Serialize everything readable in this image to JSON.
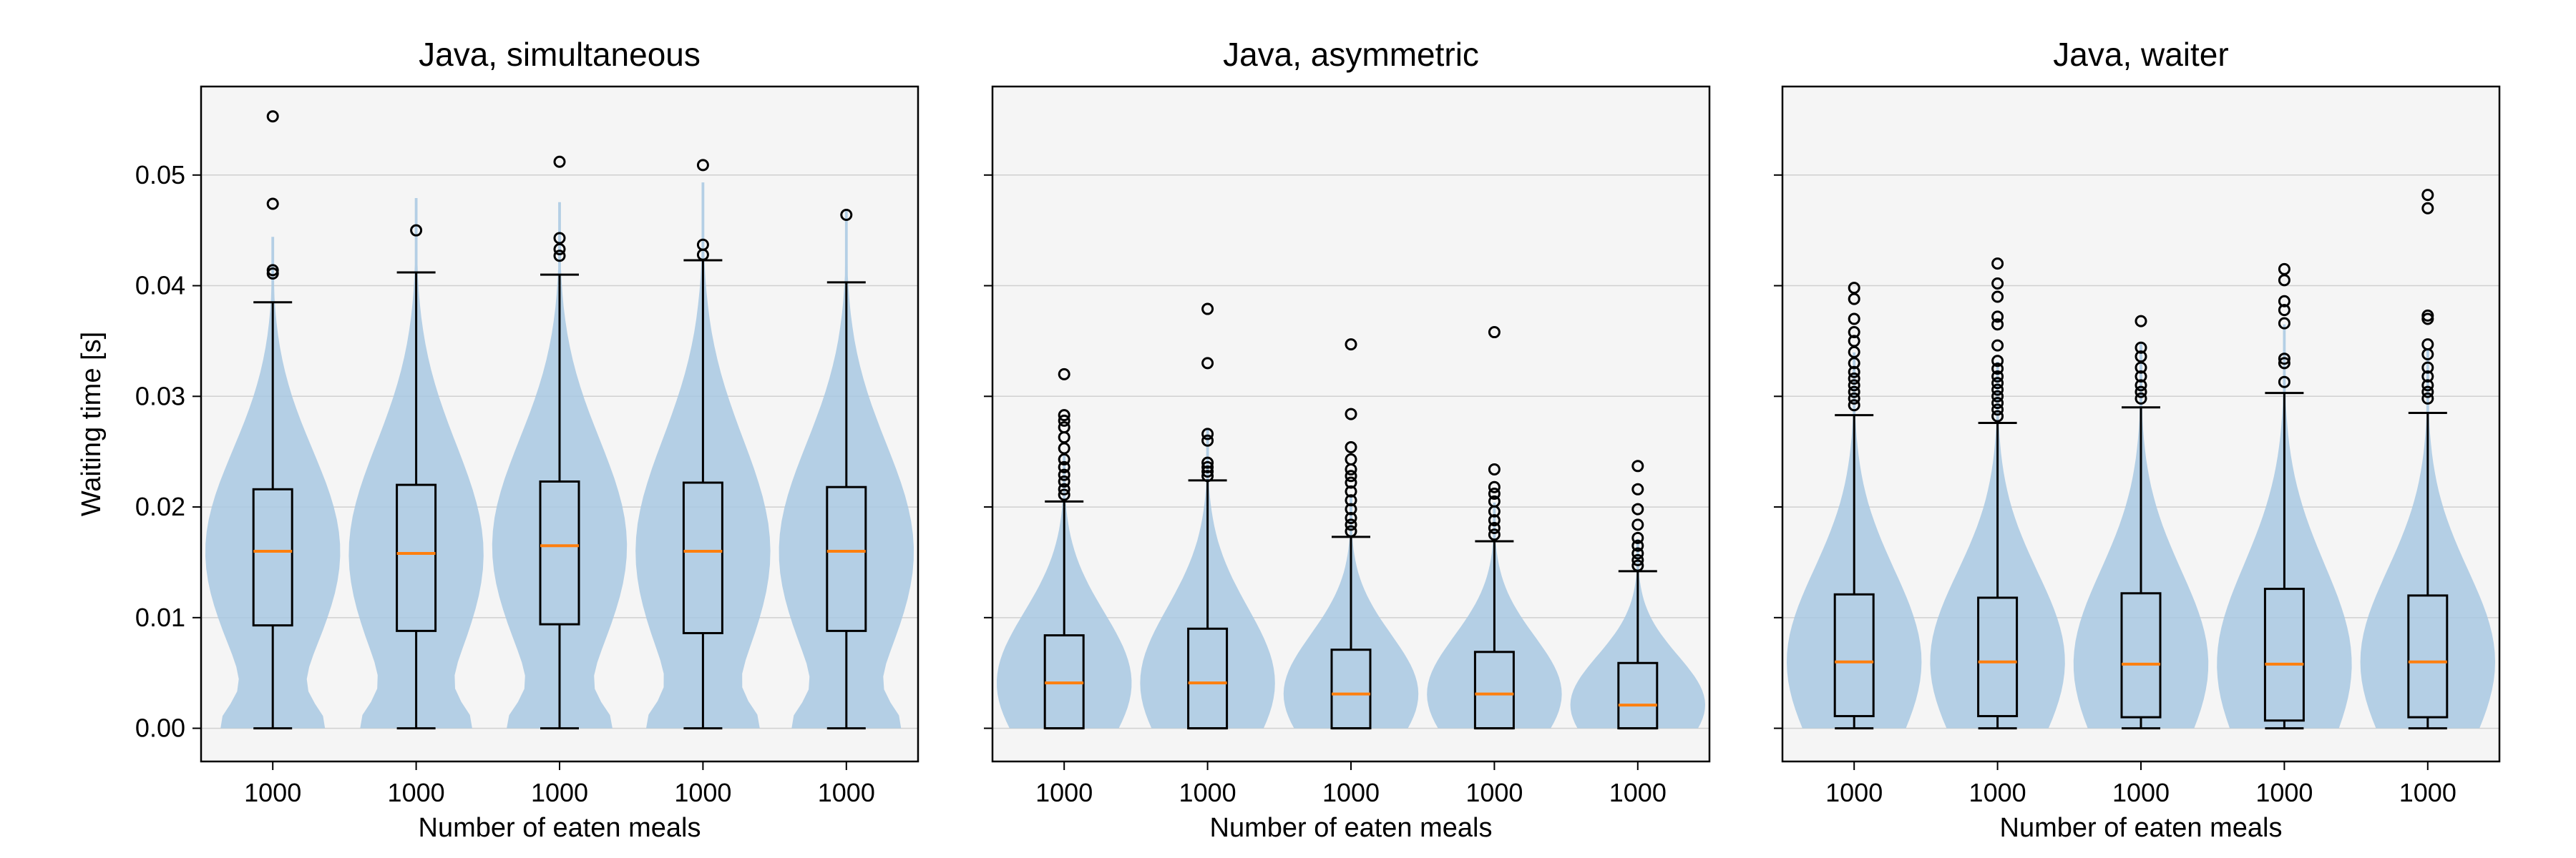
{
  "chart_data": [
    {
      "type": "violin",
      "title": "Java, simultaneous",
      "xlabel": "Number of eaten meals",
      "ylabel": "Waiting time [s]",
      "categories": [
        "1000",
        "1000",
        "1000",
        "1000",
        "1000"
      ],
      "ylim": [
        -0.003,
        0.058
      ],
      "yticks": [
        "0.00",
        "0.01",
        "0.02",
        "0.03",
        "0.04",
        "0.05"
      ],
      "grid": true,
      "colors": {
        "violin": "#a8c8e2",
        "median": "#ff7f0e",
        "background": "#f5f5f5",
        "grid": "#d0d0d0"
      },
      "boxes": [
        {
          "q1": 0.0093,
          "median": 0.016,
          "q3": 0.0216,
          "whisker_low": 0.0,
          "whisker_high": 0.0385
        },
        {
          "q1": 0.0088,
          "median": 0.0158,
          "q3": 0.022,
          "whisker_low": 0.0,
          "whisker_high": 0.0412
        },
        {
          "q1": 0.0094,
          "median": 0.0165,
          "q3": 0.0223,
          "whisker_low": 0.0,
          "whisker_high": 0.041
        },
        {
          "q1": 0.0086,
          "median": 0.016,
          "q3": 0.0222,
          "whisker_low": 0.0,
          "whisker_high": 0.0423
        },
        {
          "q1": 0.0088,
          "median": 0.016,
          "q3": 0.0218,
          "whisker_low": 0.0,
          "whisker_high": 0.0403
        }
      ],
      "outliers": [
        [
          0.0553,
          0.0474,
          0.0414,
          0.0411
        ],
        [
          0.045
        ],
        [
          0.0512,
          0.0443,
          0.0433,
          0.0427
        ],
        [
          0.0509,
          0.0437,
          0.0428
        ],
        [
          0.0464
        ]
      ]
    },
    {
      "type": "violin",
      "title": "Java, asymmetric",
      "xlabel": "Number of eaten meals",
      "ylabel": "",
      "categories": [
        "1000",
        "1000",
        "1000",
        "1000",
        "1000"
      ],
      "ylim": [
        -0.003,
        0.058
      ],
      "yticks": [],
      "grid": true,
      "boxes": [
        {
          "q1": 0.0,
          "median": 0.0041,
          "q3": 0.0084,
          "whisker_low": 0.0,
          "whisker_high": 0.0205
        },
        {
          "q1": 0.0,
          "median": 0.0041,
          "q3": 0.009,
          "whisker_low": 0.0,
          "whisker_high": 0.0224
        },
        {
          "q1": 0.0,
          "median": 0.0031,
          "q3": 0.0071,
          "whisker_low": 0.0,
          "whisker_high": 0.0173
        },
        {
          "q1": 0.0,
          "median": 0.0031,
          "q3": 0.0069,
          "whisker_low": 0.0,
          "whisker_high": 0.0169
        },
        {
          "q1": 0.0,
          "median": 0.0021,
          "q3": 0.0059,
          "whisker_low": 0.0,
          "whisker_high": 0.0142
        }
      ],
      "outliers": [
        [
          0.032,
          0.0283,
          0.0278,
          0.0272,
          0.0263,
          0.0253,
          0.0243,
          0.0236,
          0.0229,
          0.0223,
          0.0216,
          0.0211
        ],
        [
          0.0379,
          0.033,
          0.0266,
          0.026,
          0.024,
          0.0236,
          0.0232,
          0.0228
        ],
        [
          0.0347,
          0.0284,
          0.0254,
          0.0243,
          0.0234,
          0.0228,
          0.0222,
          0.0214,
          0.0206,
          0.0198,
          0.019,
          0.0184,
          0.0178
        ],
        [
          0.0358,
          0.0234,
          0.0218,
          0.0212,
          0.0205,
          0.0196,
          0.0188,
          0.0181,
          0.0175
        ],
        [
          0.0237,
          0.0216,
          0.0198,
          0.0184,
          0.0172,
          0.0165,
          0.0158,
          0.0152,
          0.0147
        ]
      ]
    },
    {
      "type": "violin",
      "title": "Java, waiter",
      "xlabel": "Number of eaten meals",
      "ylabel": "",
      "categories": [
        "1000",
        "1000",
        "1000",
        "1000",
        "1000"
      ],
      "ylim": [
        -0.003,
        0.058
      ],
      "yticks": [],
      "grid": true,
      "boxes": [
        {
          "q1": 0.0011,
          "median": 0.006,
          "q3": 0.0121,
          "whisker_low": 0.0,
          "whisker_high": 0.0283
        },
        {
          "q1": 0.0011,
          "median": 0.006,
          "q3": 0.0118,
          "whisker_low": 0.0,
          "whisker_high": 0.0276
        },
        {
          "q1": 0.001,
          "median": 0.0058,
          "q3": 0.0122,
          "whisker_low": 0.0,
          "whisker_high": 0.029
        },
        {
          "q1": 0.0007,
          "median": 0.0058,
          "q3": 0.0126,
          "whisker_low": 0.0,
          "whisker_high": 0.0303
        },
        {
          "q1": 0.001,
          "median": 0.006,
          "q3": 0.012,
          "whisker_low": 0.0,
          "whisker_high": 0.0285
        }
      ],
      "outliers": [
        [
          0.0398,
          0.0388,
          0.037,
          0.0358,
          0.035,
          0.034,
          0.033,
          0.0322,
          0.0316,
          0.031,
          0.0304,
          0.0298,
          0.0292
        ],
        [
          0.042,
          0.0402,
          0.039,
          0.0372,
          0.0365,
          0.0346,
          0.0332,
          0.0325,
          0.0318,
          0.0312,
          0.0306,
          0.03,
          0.0294,
          0.0288,
          0.0282
        ],
        [
          0.0368,
          0.0344,
          0.0336,
          0.0326,
          0.0318,
          0.031,
          0.0304,
          0.0298
        ],
        [
          0.0415,
          0.0405,
          0.0386,
          0.0378,
          0.0366,
          0.0334,
          0.033,
          0.0313
        ],
        [
          0.0482,
          0.047,
          0.0373,
          0.037,
          0.0347,
          0.0338,
          0.0326,
          0.0318,
          0.031,
          0.0304,
          0.0298
        ]
      ]
    }
  ]
}
